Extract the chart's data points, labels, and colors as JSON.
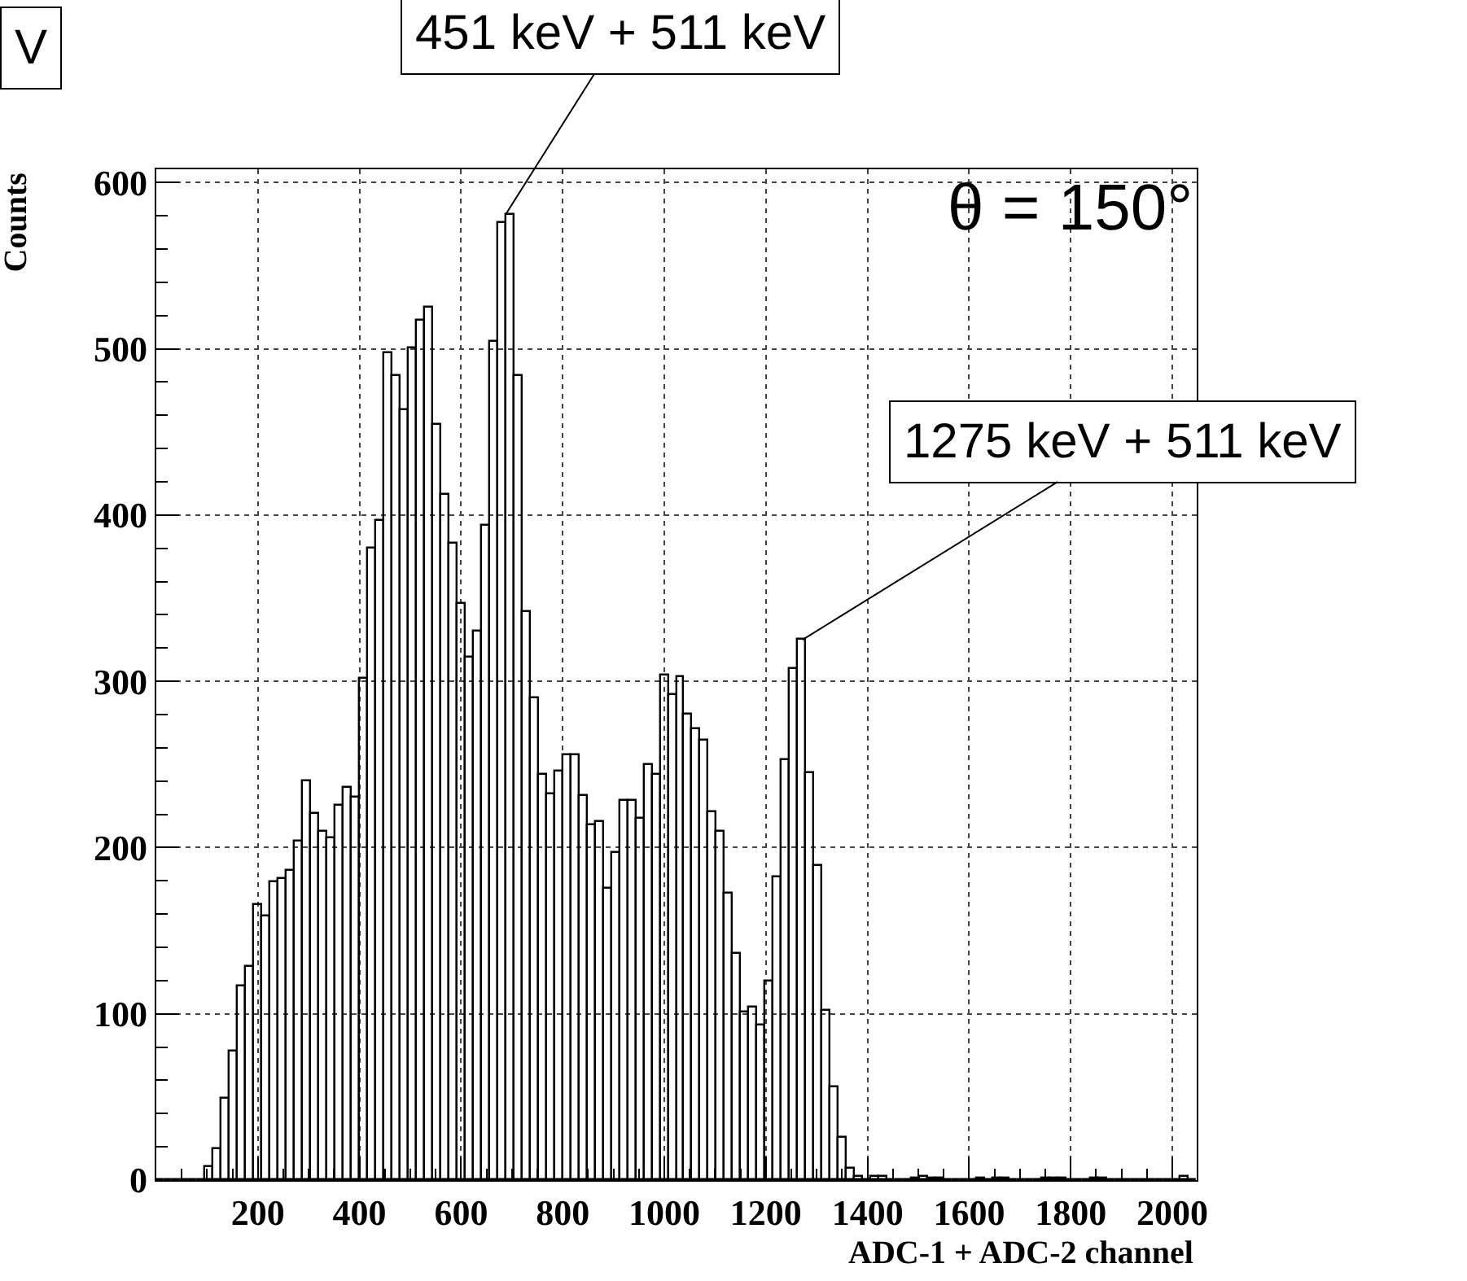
{
  "chart_data": {
    "type": "histogram",
    "xlabel": "ADC-1 + ADC-2 channel",
    "ylabel": "Counts",
    "color": "#000000",
    "bins": [
      0,
      16,
      32,
      48,
      64,
      80,
      96,
      112,
      128,
      144,
      160,
      176,
      192,
      208,
      224,
      240,
      256,
      272,
      288,
      304,
      320,
      336,
      352,
      368,
      384,
      400,
      416,
      432,
      448,
      464,
      480,
      496,
      512,
      528,
      544,
      560,
      576,
      592,
      608,
      624,
      640,
      656,
      672,
      688,
      704,
      720,
      736,
      752,
      768,
      784,
      800,
      816,
      832,
      848,
      864,
      880,
      896,
      912,
      928,
      944,
      960,
      976,
      992,
      1008,
      1024,
      1040,
      1056,
      1072,
      1088,
      1104,
      1120,
      1136,
      1152,
      1168,
      1184,
      1200,
      1216,
      1232,
      1248,
      1264,
      1280,
      1296,
      1312,
      1328,
      1344,
      1360,
      1376,
      1392,
      1408,
      1424,
      1440,
      1456,
      1472,
      1488,
      1504,
      1520,
      1536,
      1552,
      1568,
      1584,
      1600,
      1616,
      1632,
      1648,
      1664,
      1680,
      1696,
      1712,
      1728,
      1744,
      1760,
      1776,
      1792,
      1808,
      1824,
      1840,
      1856,
      1872,
      1888,
      1904,
      1920,
      1936,
      1952,
      1968,
      1984,
      2000,
      2016,
      2032,
      2048
    ],
    "values": [
      0,
      0,
      0,
      0,
      0,
      0,
      8,
      19,
      49,
      77,
      117,
      128,
      165,
      159,
      179,
      181,
      186,
      204,
      240,
      220,
      210,
      206,
      225,
      236,
      230,
      302,
      380,
      397,
      497,
      484,
      463,
      500,
      517,
      525,
      454,
      412,
      383,
      347,
      314,
      330,
      394,
      504,
      576,
      581,
      484,
      342,
      290,
      244,
      232,
      246,
      256,
      256,
      231,
      213,
      215,
      175,
      197,
      228,
      228,
      217,
      250,
      244,
      304,
      292,
      303,
      280,
      271,
      264,
      221,
      210,
      172,
      136,
      101,
      104,
      93,
      119,
      182,
      253,
      307,
      325,
      245,
      189,
      102,
      56,
      25,
      7,
      2,
      0,
      2,
      2,
      0,
      0,
      0,
      1,
      2,
      1,
      1,
      0,
      0,
      0,
      0,
      1,
      0,
      1,
      1,
      0,
      0,
      0,
      0,
      1,
      1,
      1,
      0,
      0,
      0,
      1,
      1,
      0,
      0,
      0,
      0,
      0,
      0,
      0,
      0,
      0,
      2,
      0
    ],
    "xlim": [
      0,
      2048
    ],
    "ylim": [
      0,
      608
    ],
    "xticks": [
      200,
      400,
      600,
      800,
      1000,
      1200,
      1400,
      1600,
      1800,
      2000
    ],
    "yticks": [
      0,
      100,
      200,
      300,
      400,
      500,
      600
    ],
    "grid": true,
    "annotations": [
      {
        "text": "451 keV + 511 keV",
        "x": 688,
        "y": 581
      },
      {
        "text": "1275 keV + 511 keV",
        "x": 1272,
        "y": 325
      },
      "θ = 150°",
      "V"
    ]
  }
}
